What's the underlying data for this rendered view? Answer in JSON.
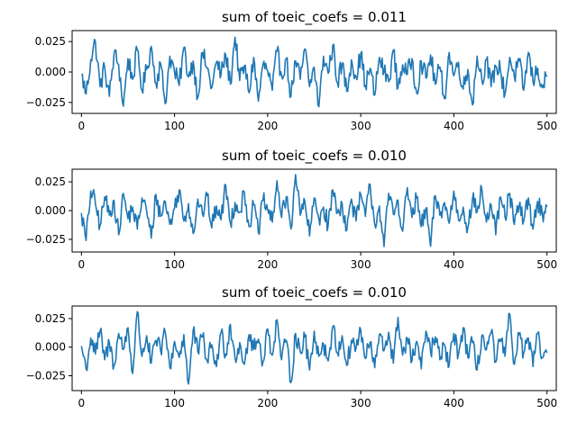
{
  "chart_data": [
    {
      "type": "line",
      "title": "sum of toeic_coefs = 0.011",
      "xlim": [
        -10,
        510
      ],
      "ylim": [
        -0.034,
        0.034
      ],
      "xticks": [
        0,
        100,
        200,
        300,
        400,
        500
      ],
      "xtick_labels": [
        "0",
        "100",
        "200",
        "300",
        "400",
        "500"
      ],
      "yticks": [
        -0.025,
        0.0,
        0.025
      ],
      "ytick_labels": [
        "−0.025",
        "0.000",
        "0.025"
      ],
      "grid": false,
      "legend": "none",
      "color": "#1f77b4",
      "n_points": 501,
      "y_range_observed": [
        -0.029,
        0.031
      ],
      "series": [
        {
          "x": [
            0,
            5,
            10,
            15,
            20,
            25,
            30,
            35,
            40,
            45,
            50,
            55,
            60,
            65,
            70,
            75,
            80,
            85,
            90,
            95,
            100,
            105,
            110,
            115,
            120,
            125,
            130,
            135,
            140,
            145,
            150,
            155,
            160,
            165,
            170,
            175,
            180,
            185,
            190,
            195,
            200,
            205,
            210,
            215,
            220,
            225,
            230,
            235,
            240,
            245,
            250,
            255,
            260,
            265,
            270,
            275,
            280,
            285,
            290,
            295,
            300,
            305,
            310,
            315,
            320,
            325,
            330,
            335,
            340,
            345,
            350,
            355,
            360,
            365,
            370,
            375,
            380,
            385,
            390,
            395,
            400,
            405,
            410,
            415,
            420,
            425,
            430,
            435,
            440,
            445,
            450,
            455,
            460,
            465,
            470,
            475,
            480,
            485,
            490,
            495,
            500
          ],
          "values": [
            -0.002,
            -0.018,
            0.01,
            0.025,
            -0.012,
            0.004,
            -0.02,
            0.015,
            0.006,
            -0.028,
            0.011,
            -0.006,
            0.018,
            -0.015,
            0.002,
            0.021,
            -0.009,
            0.007,
            -0.026,
            0.013,
            0.0,
            -0.011,
            0.02,
            -0.004,
            0.009,
            -0.021,
            0.016,
            0.003,
            -0.013,
            0.008,
            -0.002,
            0.014,
            -0.01,
            0.031,
            -0.007,
            0.005,
            -0.017,
            0.012,
            -0.024,
            0.006,
            0.001,
            -0.015,
            0.017,
            -0.003,
            0.011,
            -0.02,
            0.009,
            -0.006,
            0.019,
            -0.012,
            0.004,
            -0.029,
            0.013,
            -0.001,
            0.022,
            -0.009,
            0.007,
            -0.016,
            0.01,
            -0.004,
            0.015,
            -0.011,
            0.003,
            -0.019,
            0.012,
            0.0,
            -0.008,
            0.018,
            -0.013,
            0.006,
            -0.002,
            0.011,
            -0.017,
            0.009,
            -0.005,
            0.014,
            -0.01,
            0.004,
            -0.022,
            0.016,
            -0.003,
            0.008,
            -0.014,
            0.002,
            -0.027,
            0.013,
            -0.006,
            0.01,
            -0.012,
            0.005,
            0.001,
            -0.018,
            0.012,
            -0.004,
            0.009,
            -0.015,
            0.016,
            -0.008,
            0.003,
            -0.013,
            -0.004
          ]
        }
      ]
    },
    {
      "type": "line",
      "title": "sum of toeic_coefs = 0.010",
      "xlim": [
        -10,
        510
      ],
      "ylim": [
        -0.036,
        0.036
      ],
      "xticks": [
        0,
        100,
        200,
        300,
        400,
        500
      ],
      "xtick_labels": [
        "0",
        "100",
        "200",
        "300",
        "400",
        "500"
      ],
      "yticks": [
        -0.025,
        0.0,
        0.025
      ],
      "ytick_labels": [
        "−0.025",
        "0.000",
        "0.025"
      ],
      "grid": false,
      "legend": "none",
      "color": "#1f77b4",
      "n_points": 501,
      "y_range_observed": [
        -0.032,
        0.034
      ],
      "series": [
        {
          "x": [
            0,
            5,
            10,
            15,
            20,
            25,
            30,
            35,
            40,
            45,
            50,
            55,
            60,
            65,
            70,
            75,
            80,
            85,
            90,
            95,
            100,
            105,
            110,
            115,
            120,
            125,
            130,
            135,
            140,
            145,
            150,
            155,
            160,
            165,
            170,
            175,
            180,
            185,
            190,
            195,
            200,
            205,
            210,
            215,
            220,
            225,
            230,
            235,
            240,
            245,
            250,
            255,
            260,
            265,
            270,
            275,
            280,
            285,
            290,
            295,
            300,
            305,
            310,
            315,
            320,
            325,
            330,
            335,
            340,
            345,
            350,
            355,
            360,
            365,
            370,
            375,
            380,
            385,
            390,
            395,
            400,
            405,
            410,
            415,
            420,
            425,
            430,
            435,
            440,
            445,
            450,
            455,
            460,
            465,
            470,
            475,
            480,
            485,
            490,
            495,
            500
          ],
          "values": [
            -0.002,
            -0.026,
            0.017,
            0.006,
            -0.013,
            0.012,
            -0.004,
            0.009,
            -0.021,
            0.015,
            -0.007,
            0.003,
            -0.016,
            0.011,
            0.0,
            -0.024,
            0.014,
            -0.005,
            0.008,
            -0.012,
            0.002,
            0.018,
            -0.009,
            0.006,
            -0.02,
            0.01,
            -0.003,
            0.013,
            -0.015,
            0.004,
            -0.008,
            0.022,
            -0.011,
            0.007,
            -0.001,
            0.016,
            -0.014,
            0.005,
            -0.019,
            0.009,
            0.001,
            -0.01,
            0.026,
            -0.006,
            0.012,
            -0.016,
            0.034,
            -0.004,
            0.008,
            -0.022,
            0.011,
            -0.007,
            0.003,
            -0.013,
            0.018,
            -0.002,
            0.006,
            -0.017,
            0.01,
            -0.009,
            0.014,
            -0.005,
            0.023,
            -0.012,
            0.004,
            -0.032,
            0.015,
            -0.003,
            0.009,
            -0.018,
            0.02,
            -0.006,
            0.011,
            -0.014,
            0.002,
            -0.031,
            0.013,
            -0.004,
            0.007,
            -0.011,
            0.017,
            -0.008,
            0.003,
            -0.015,
            0.01,
            -0.001,
            0.019,
            -0.01,
            0.005,
            -0.021,
            0.012,
            -0.006,
            0.015,
            -0.012,
            0.004,
            -0.009,
            0.011,
            -0.016,
            0.008,
            -0.003,
            0.003
          ]
        }
      ]
    },
    {
      "type": "line",
      "title": "sum of toeic_coefs = 0.010",
      "xlim": [
        -10,
        510
      ],
      "ylim": [
        -0.038,
        0.036
      ],
      "xticks": [
        0,
        100,
        200,
        300,
        400,
        500
      ],
      "xtick_labels": [
        "0",
        "100",
        "200",
        "300",
        "400",
        "500"
      ],
      "yticks": [
        -0.025,
        0.0,
        0.025
      ],
      "ytick_labels": [
        "−0.025",
        "0.000",
        "0.025"
      ],
      "grid": false,
      "legend": "none",
      "color": "#1f77b4",
      "n_points": 501,
      "y_range_observed": [
        -0.035,
        0.031
      ],
      "series": [
        {
          "x": [
            0,
            5,
            10,
            15,
            20,
            25,
            30,
            35,
            40,
            45,
            50,
            55,
            60,
            65,
            70,
            75,
            80,
            85,
            90,
            95,
            100,
            105,
            110,
            115,
            120,
            125,
            130,
            135,
            140,
            145,
            150,
            155,
            160,
            165,
            170,
            175,
            180,
            185,
            190,
            195,
            200,
            205,
            210,
            215,
            220,
            225,
            230,
            235,
            240,
            245,
            250,
            255,
            260,
            265,
            270,
            275,
            280,
            285,
            290,
            295,
            300,
            305,
            310,
            315,
            320,
            325,
            330,
            335,
            340,
            345,
            350,
            355,
            360,
            365,
            370,
            375,
            380,
            385,
            390,
            395,
            400,
            405,
            410,
            415,
            420,
            425,
            430,
            435,
            440,
            445,
            450,
            455,
            460,
            465,
            470,
            475,
            480,
            485,
            490,
            495,
            500
          ],
          "values": [
            0.001,
            -0.019,
            0.008,
            -0.006,
            0.014,
            -0.011,
            0.004,
            -0.016,
            0.012,
            -0.002,
            0.017,
            -0.023,
            0.031,
            -0.008,
            0.01,
            -0.014,
            0.006,
            -0.003,
            0.013,
            -0.018,
            0.005,
            -0.009,
            0.011,
            -0.035,
            0.015,
            -0.004,
            0.009,
            -0.012,
            0.002,
            -0.017,
            0.013,
            -0.006,
            0.02,
            -0.01,
            0.004,
            -0.015,
            0.011,
            -0.002,
            0.007,
            -0.013,
            0.016,
            -0.007,
            0.024,
            -0.011,
            0.006,
            -0.031,
            0.012,
            -0.004,
            0.009,
            -0.02,
            0.014,
            -0.008,
            0.003,
            -0.012,
            0.018,
            -0.005,
            0.01,
            -0.016,
            0.006,
            -0.001,
            0.015,
            -0.01,
            0.004,
            -0.018,
            0.011,
            -0.003,
            0.013,
            -0.014,
            0.026,
            -0.007,
            0.008,
            -0.012,
            0.005,
            -0.019,
            0.014,
            -0.004,
            0.009,
            -0.011,
            0.002,
            -0.016,
            0.012,
            -0.006,
            0.017,
            -0.009,
            0.004,
            -0.02,
            0.01,
            -0.002,
            0.013,
            -0.013,
            0.007,
            -0.008,
            0.029,
            -0.015,
            0.011,
            -0.005,
            0.008,
            -0.017,
            0.012,
            -0.009,
            -0.005
          ]
        }
      ]
    }
  ]
}
